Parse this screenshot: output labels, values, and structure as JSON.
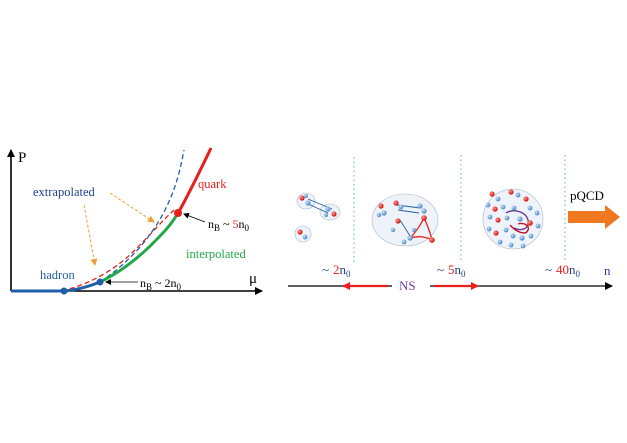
{
  "left_panel": {
    "y_axis_label": "P",
    "x_axis_label": "μ",
    "labels": {
      "extrapolated": "extrapolated",
      "quark": "quark",
      "interpolated": "interpolated",
      "hadron": "hadron"
    },
    "density_markers": [
      {
        "base": "n",
        "base_sub": "B",
        "tilde": "~",
        "number": "5",
        "suffix": "n",
        "suffix_sub": "0"
      },
      {
        "base": "n",
        "base_sub": "B",
        "tilde": "~",
        "number": "2",
        "suffix": "n",
        "suffix_sub": "0"
      }
    ],
    "colors": {
      "hadron": "#1f5fa8",
      "quark": "#e8201c",
      "interpolated": "#22a84a",
      "extrapolated_label": "#1f3f8f",
      "annotation_arrow": "#f0a030",
      "number_highlight": "#e8201c"
    }
  },
  "right_panel": {
    "axis_label": "n",
    "ticks": [
      {
        "tilde": "~",
        "number": "2",
        "suffix": "n",
        "suffix_sub": "0"
      },
      {
        "tilde": "~",
        "number": "5",
        "suffix": "n",
        "suffix_sub": "0"
      },
      {
        "tilde": "~",
        "number": "40",
        "suffix": "n",
        "suffix_sub": "0"
      }
    ],
    "ns_label": "NS",
    "pqcd_label": "pQCD",
    "colors": {
      "ns_label": "#6a3d9a",
      "arrows": "#e8201c",
      "pqcd_arrow": "#f07820",
      "proton": "#e8201c",
      "neutron": "#5b9bd5",
      "divider": "#5fa8c8"
    }
  }
}
